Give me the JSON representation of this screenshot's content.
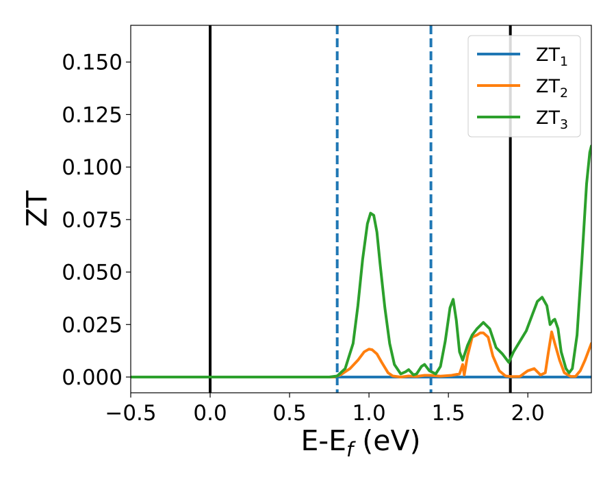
{
  "chart_data": {
    "type": "line",
    "xlabel": {
      "main": "E-E",
      "sub": "f",
      "suffix": " (eV)"
    },
    "ylabel": "ZT",
    "xlim": [
      -0.5,
      2.4
    ],
    "ylim": [
      -0.0075,
      0.1675
    ],
    "xticks": [
      -0.5,
      0.0,
      0.5,
      1.0,
      1.5,
      2.0
    ],
    "xtick_labels": [
      "−0.5",
      "0.0",
      "0.5",
      "1.0",
      "1.5",
      "2.0"
    ],
    "yticks": [
      0.0,
      0.025,
      0.05,
      0.075,
      0.1,
      0.125,
      0.15
    ],
    "ytick_labels": [
      "0.000",
      "0.025",
      "0.050",
      "0.075",
      "0.100",
      "0.125",
      "0.150"
    ],
    "grid": false,
    "legend_position": "top-right",
    "vlines": [
      {
        "x": 0.0,
        "color": "#000000",
        "style": "solid"
      },
      {
        "x": 0.8,
        "color": "#1f77b4",
        "style": "dashed"
      },
      {
        "x": 1.39,
        "color": "#1f77b4",
        "style": "dashed"
      },
      {
        "x": 1.89,
        "color": "#000000",
        "style": "solid"
      }
    ],
    "series": [
      {
        "name": "ZT",
        "name_sub": "1",
        "color": "#1f77b4",
        "x": [
          -0.5,
          2.4
        ],
        "y": [
          0.0,
          0.0
        ]
      },
      {
        "name": "ZT",
        "name_sub": "2",
        "color": "#ff7f0e",
        "x": [
          -0.5,
          0.78,
          0.82,
          0.88,
          0.93,
          0.97,
          1.0,
          1.02,
          1.05,
          1.08,
          1.12,
          1.15,
          1.2,
          1.25,
          1.3,
          1.35,
          1.39,
          1.45,
          1.52,
          1.57,
          1.59,
          1.6,
          1.62,
          1.65,
          1.68,
          1.7,
          1.72,
          1.75,
          1.78,
          1.82,
          1.86,
          1.9,
          1.95,
          2.0,
          2.04,
          2.08,
          2.11,
          2.13,
          2.15,
          2.17,
          2.2,
          2.23,
          2.27,
          2.3,
          2.33,
          2.36,
          2.4
        ],
        "y": [
          0.0,
          0.0,
          0.001,
          0.004,
          0.008,
          0.012,
          0.0133,
          0.013,
          0.011,
          0.007,
          0.002,
          0.0005,
          0.0,
          0.0005,
          0.0003,
          0.0008,
          0.0008,
          0.0004,
          0.0008,
          0.0015,
          0.006,
          0.001,
          0.01,
          0.019,
          0.02,
          0.021,
          0.021,
          0.019,
          0.01,
          0.003,
          0.0005,
          0.0002,
          0.0003,
          0.003,
          0.004,
          0.001,
          0.002,
          0.012,
          0.0215,
          0.016,
          0.008,
          0.002,
          0.0003,
          0.0003,
          0.003,
          0.008,
          0.016
        ]
      },
      {
        "name": "ZT",
        "name_sub": "3",
        "color": "#2ca02c",
        "x": [
          -0.5,
          0.75,
          0.8,
          0.85,
          0.9,
          0.93,
          0.96,
          0.99,
          1.01,
          1.03,
          1.05,
          1.07,
          1.1,
          1.13,
          1.16,
          1.2,
          1.23,
          1.25,
          1.28,
          1.3,
          1.33,
          1.35,
          1.38,
          1.42,
          1.45,
          1.48,
          1.51,
          1.53,
          1.55,
          1.57,
          1.59,
          1.62,
          1.65,
          1.68,
          1.72,
          1.76,
          1.8,
          1.84,
          1.88,
          1.91,
          1.95,
          1.99,
          2.03,
          2.06,
          2.09,
          2.12,
          2.14,
          2.16,
          2.17,
          2.19,
          2.21,
          2.24,
          2.26,
          2.28,
          2.31,
          2.34,
          2.37,
          2.39,
          2.4
        ],
        "y": [
          0.0,
          0.0,
          0.0005,
          0.004,
          0.016,
          0.034,
          0.056,
          0.073,
          0.078,
          0.077,
          0.069,
          0.054,
          0.033,
          0.016,
          0.006,
          0.0015,
          0.0025,
          0.0035,
          0.001,
          0.0015,
          0.005,
          0.006,
          0.003,
          0.0015,
          0.005,
          0.017,
          0.033,
          0.037,
          0.027,
          0.012,
          0.008,
          0.015,
          0.02,
          0.023,
          0.026,
          0.023,
          0.014,
          0.011,
          0.007,
          0.012,
          0.017,
          0.022,
          0.03,
          0.036,
          0.038,
          0.034,
          0.025,
          0.027,
          0.0275,
          0.023,
          0.012,
          0.004,
          0.002,
          0.004,
          0.02,
          0.055,
          0.092,
          0.107,
          0.11
        ]
      }
    ]
  }
}
